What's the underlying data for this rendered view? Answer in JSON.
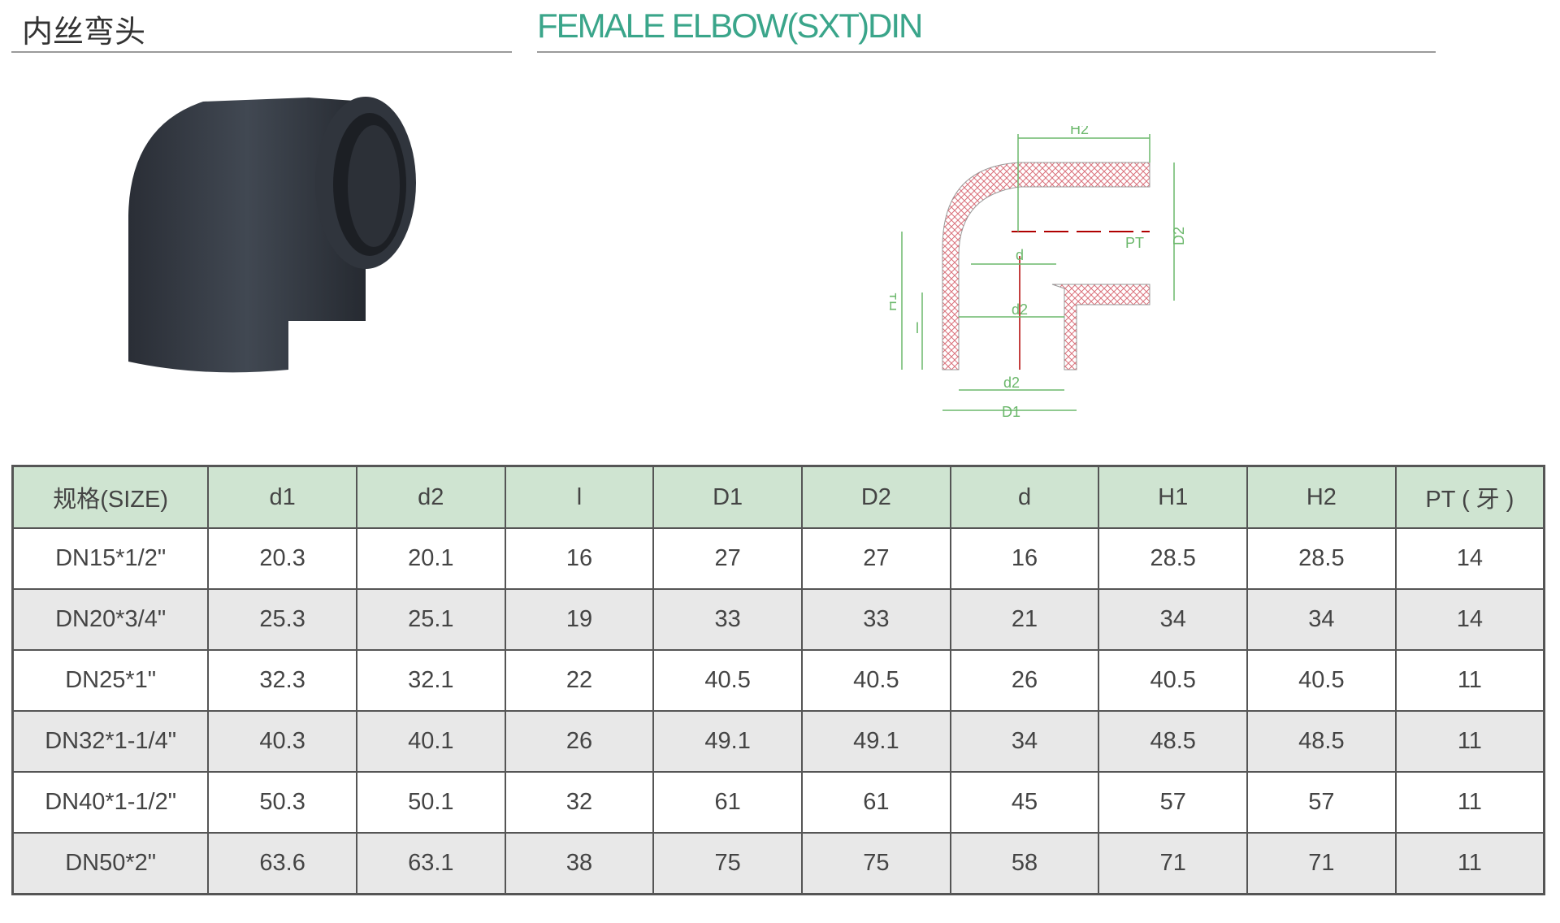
{
  "header": {
    "title_cn": "内丝弯头",
    "title_en": "FEMALE ELBOW(SXT)DIN"
  },
  "diagram": {
    "labels": {
      "H2": "H2",
      "D2": "D2",
      "PT": "PT",
      "d": "d",
      "d2_inner": "d2",
      "H1": "H1",
      "l": "l",
      "d2_bottom": "d2",
      "D1": "D1"
    },
    "colors": {
      "dimension": "#6cb86c",
      "hatch": "#d9707a",
      "center": "#b00000"
    }
  },
  "table": {
    "headers": [
      "规格(SIZE)",
      "d1",
      "d2",
      "l",
      "D1",
      "D2",
      "d",
      "H1",
      "H2",
      "PT ( 牙 )"
    ],
    "rows": [
      [
        "DN15*1/2\"",
        "20.3",
        "20.1",
        "16",
        "27",
        "27",
        "16",
        "28.5",
        "28.5",
        "14"
      ],
      [
        "DN20*3/4\"",
        "25.3",
        "25.1",
        "19",
        "33",
        "33",
        "21",
        "34",
        "34",
        "14"
      ],
      [
        "DN25*1\"",
        "32.3",
        "32.1",
        "22",
        "40.5",
        "40.5",
        "26",
        "40.5",
        "40.5",
        "11"
      ],
      [
        "DN32*1-1/4\"",
        "40.3",
        "40.1",
        "26",
        "49.1",
        "49.1",
        "34",
        "48.5",
        "48.5",
        "11"
      ],
      [
        "DN40*1-1/2\"",
        "50.3",
        "50.1",
        "32",
        "61",
        "61",
        "45",
        "57",
        "57",
        "11"
      ],
      [
        "DN50*2\"",
        "63.6",
        "63.1",
        "38",
        "75",
        "75",
        "58",
        "71",
        "71",
        "11"
      ]
    ],
    "colors": {
      "header_bg": "#cfe4d1",
      "alt_row_bg": "#e8e8e8",
      "title_accent": "#3aa58a"
    }
  }
}
